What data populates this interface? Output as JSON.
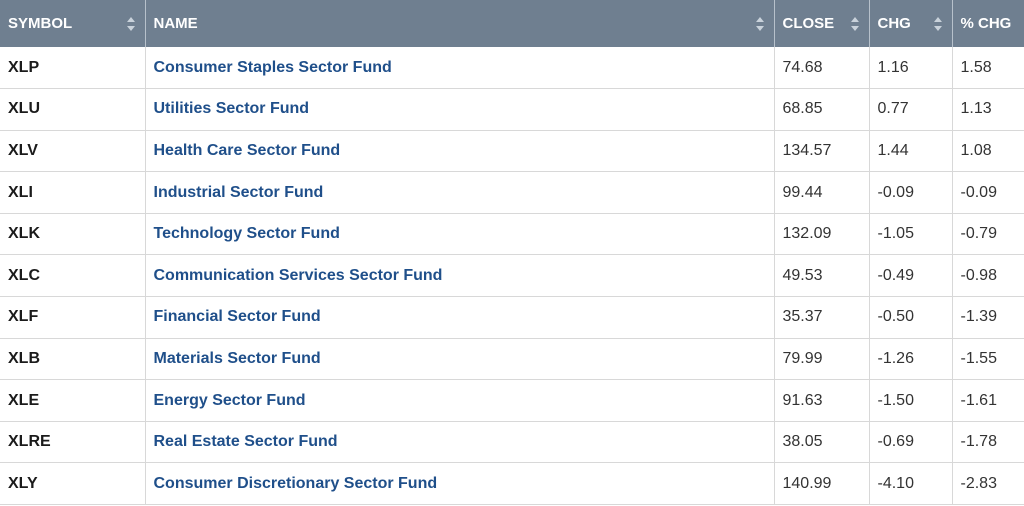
{
  "colors": {
    "header_bg": "#6f7f90",
    "header_text": "#ffffff",
    "link": "#1f4f8a",
    "row_border": "#d8d8d8"
  },
  "table": {
    "headers": [
      "SYMBOL",
      "NAME",
      "CLOSE",
      "CHG",
      "% CHG"
    ],
    "sort_icon": "sort-arrows-icon",
    "rows": [
      {
        "symbol": "XLP",
        "name": "Consumer Staples Sector Fund",
        "close": "74.68",
        "chg": "1.16",
        "pct": "1.58"
      },
      {
        "symbol": "XLU",
        "name": "Utilities Sector Fund",
        "close": "68.85",
        "chg": "0.77",
        "pct": "1.13"
      },
      {
        "symbol": "XLV",
        "name": "Health Care Sector Fund",
        "close": "134.57",
        "chg": "1.44",
        "pct": "1.08"
      },
      {
        "symbol": "XLI",
        "name": "Industrial Sector Fund",
        "close": "99.44",
        "chg": "-0.09",
        "pct": "-0.09"
      },
      {
        "symbol": "XLK",
        "name": "Technology Sector Fund",
        "close": "132.09",
        "chg": "-1.05",
        "pct": "-0.79"
      },
      {
        "symbol": "XLC",
        "name": "Communication Services Sector Fund",
        "close": "49.53",
        "chg": "-0.49",
        "pct": "-0.98"
      },
      {
        "symbol": "XLF",
        "name": "Financial Sector Fund",
        "close": "35.37",
        "chg": "-0.50",
        "pct": "-1.39"
      },
      {
        "symbol": "XLB",
        "name": "Materials Sector Fund",
        "close": "79.99",
        "chg": "-1.26",
        "pct": "-1.55"
      },
      {
        "symbol": "XLE",
        "name": "Energy Sector Fund",
        "close": "91.63",
        "chg": "-1.50",
        "pct": "-1.61"
      },
      {
        "symbol": "XLRE",
        "name": "Real Estate Sector Fund",
        "close": "38.05",
        "chg": "-0.69",
        "pct": "-1.78"
      },
      {
        "symbol": "XLY",
        "name": "Consumer Discretionary Sector Fund",
        "close": "140.99",
        "chg": "-4.10",
        "pct": "-2.83"
      }
    ]
  }
}
